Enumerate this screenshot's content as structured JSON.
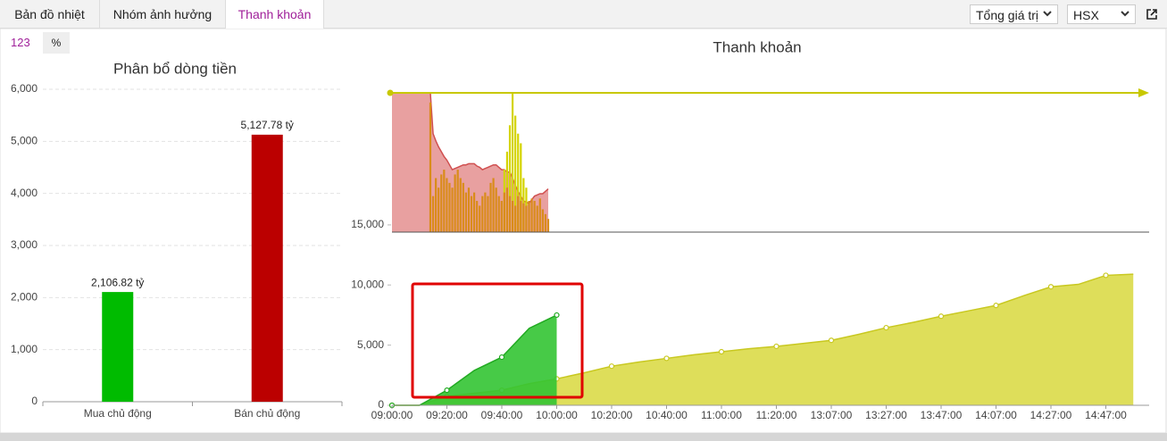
{
  "tabs": [
    "Bản đồ nhiệt",
    "Nhóm ảnh hưởng",
    "Thanh khoản"
  ],
  "active_tab": 2,
  "controls": {
    "measure": "Tổng giá trị",
    "exchange": "HSX"
  },
  "toggles": [
    "123",
    "%"
  ],
  "chart_data": [
    {
      "type": "bar",
      "title": "Phân bổ dòng tiền",
      "categories": [
        "Mua chủ động",
        "Bán chủ động"
      ],
      "values": [
        2106.82,
        5127.78
      ],
      "value_labels": [
        "2,106.82 tỷ",
        "5,127.78 tỷ"
      ],
      "colors": [
        "#00bb00",
        "#bb0000"
      ],
      "ylim": [
        0,
        6000
      ],
      "yticks": [
        0,
        {
          "value": 1000,
          "label": "1,000"
        },
        {
          "value": 2000,
          "label": "2,000"
        },
        {
          "value": 3000,
          "label": "3,000"
        },
        {
          "value": 4000,
          "label": "4,000"
        },
        {
          "value": 5000,
          "label": "5,000"
        },
        {
          "value": 6000,
          "label": "6,000"
        }
      ],
      "grid": true
    },
    {
      "type": "area",
      "title": "Thanh khoản",
      "categories": [
        "09:00:00",
        null,
        "09:20:00",
        null,
        "09:40:00",
        null,
        "10:00:00",
        null,
        "10:20:00",
        null,
        "10:40:00",
        null,
        "11:00:00",
        null,
        "11:20:00",
        null,
        "13:07:00",
        null,
        "13:27:00",
        null,
        "13:47:00",
        null,
        "14:07:00",
        null,
        "14:27:00",
        null,
        "14:47:00",
        null
      ],
      "series": [
        {
          "color": "#c8c820",
          "fill": "#dada48",
          "values": [
            0,
            0,
            750,
            1000,
            1250,
            1800,
            2200,
            2700,
            3250,
            3600,
            3900,
            4200,
            4450,
            4700,
            4900,
            5150,
            5400,
            5900,
            6450,
            6900,
            7400,
            7850,
            8300,
            9100,
            9850,
            10050,
            10800,
            10900
          ]
        },
        {
          "color": "#22aa22",
          "fill": "#33c433",
          "values": [
            0,
            0,
            1250,
            2900,
            4000,
            6400,
            7500,
            null,
            null,
            null,
            null,
            null,
            null,
            null,
            null,
            null,
            null,
            null,
            null,
            null,
            null,
            null,
            null,
            null,
            null,
            null,
            null,
            null
          ]
        }
      ],
      "ylim": [
        0,
        11500
      ],
      "yticks": [
        0,
        {
          "value": 5000,
          "label": "5,000"
        },
        {
          "value": 10000,
          "label": "10,000"
        }
      ]
    },
    {
      "type": "combo",
      "categories": [
        null,
        null,
        null,
        null,
        null,
        null,
        null,
        null,
        null,
        null,
        null,
        null,
        null,
        null,
        null,
        null,
        null,
        null,
        null,
        null,
        null,
        null,
        null,
        null,
        null,
        null,
        null,
        null,
        null,
        null,
        null,
        null,
        null,
        null,
        null,
        null,
        null,
        null,
        null,
        null,
        null,
        null,
        null,
        null,
        null,
        null,
        null,
        null,
        null,
        null,
        null,
        null,
        null,
        null,
        null,
        null,
        null,
        null
      ],
      "series": [
        {
          "kind": "area",
          "color": "#d05050",
          "fill": "#e8a0a0",
          "values": [
            26000,
            26000,
            26000,
            26000,
            26000,
            26000,
            26000,
            26000,
            26000,
            26000,
            26000,
            26000,
            26000,
            26000,
            26000,
            22600,
            22000,
            21500,
            21100,
            20700,
            20400,
            20000,
            19600,
            19700,
            19800,
            19900,
            20000,
            20000,
            20100,
            20100,
            20100,
            19900,
            19800,
            19600,
            19700,
            19800,
            19900,
            20000,
            20000,
            19800,
            19600,
            19600,
            19400,
            19400,
            18900,
            18300,
            17800,
            17400,
            17000,
            16900,
            16800,
            17100,
            17400,
            17500,
            17600,
            17600,
            17800,
            18000
          ]
        },
        {
          "kind": "bar",
          "color": "#d4d400",
          "values": [
            null,
            null,
            null,
            null,
            null,
            null,
            null,
            null,
            null,
            null,
            null,
            null,
            null,
            null,
            null,
            null,
            null,
            null,
            null,
            null,
            null,
            null,
            null,
            null,
            null,
            null,
            null,
            null,
            null,
            null,
            null,
            null,
            null,
            null,
            null,
            null,
            null,
            null,
            null,
            null,
            null,
            19600,
            21100,
            23300,
            26000,
            24100,
            22600,
            21800,
            18900,
            18100,
            null,
            null,
            null,
            null,
            null,
            null,
            null,
            null
          ]
        },
        {
          "kind": "bar",
          "color": "#d98c1a",
          "values": [
            null,
            null,
            null,
            null,
            null,
            null,
            null,
            null,
            null,
            null,
            null,
            null,
            null,
            null,
            25200,
            17400,
            18900,
            18100,
            19200,
            19600,
            18900,
            18500,
            18100,
            19200,
            19600,
            18900,
            18500,
            17700,
            18100,
            17400,
            17700,
            17000,
            16600,
            17400,
            17700,
            17400,
            18500,
            18900,
            18100,
            17400,
            17000,
            17700,
            18100,
            17400,
            17000,
            16600,
            17400,
            17000,
            16800,
            16600,
            17000,
            17200,
            17000,
            16600,
            17200,
            16300,
            15900,
            15500
          ]
        }
      ],
      "reference_line": {
        "value": 26000,
        "color": "#c8c800"
      },
      "ylim": [
        14400,
        26000
      ],
      "yticks": [
        {
          "value": 15000,
          "label": "15,000"
        }
      ]
    }
  ]
}
